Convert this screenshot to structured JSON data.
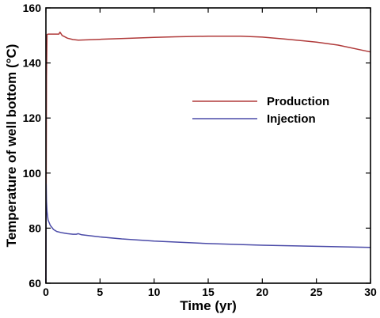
{
  "chart_data": {
    "type": "line",
    "xlabel": "Time (yr)",
    "ylabel": "Temperature of well bottom (°C)",
    "xlim": [
      0,
      30
    ],
    "ylim": [
      60,
      160
    ],
    "xticks": [
      "0",
      "5",
      "10",
      "15",
      "20",
      "25",
      "30"
    ],
    "yticks": [
      "60",
      "80",
      "100",
      "120",
      "140",
      "160"
    ],
    "grid": false,
    "legend_position": "center-right",
    "series": [
      {
        "name": "Production",
        "color": "#b03a3a",
        "x": [
          0,
          0.05,
          0.1,
          0.2,
          0.5,
          1.0,
          1.2,
          1.3,
          1.5,
          2.0,
          2.5,
          3.0,
          5,
          8,
          10,
          12,
          15,
          18,
          20,
          22,
          25,
          27,
          30
        ],
        "y": [
          60,
          135,
          150.3,
          150.5,
          150.5,
          150.5,
          150.5,
          151.2,
          150.0,
          149.0,
          148.5,
          148.3,
          148.6,
          149.0,
          149.3,
          149.5,
          149.7,
          149.7,
          149.4,
          148.7,
          147.6,
          146.5,
          144.0
        ]
      },
      {
        "name": "Injection",
        "color": "#4b4ba8",
        "x": [
          0,
          0.02,
          0.05,
          0.1,
          0.2,
          0.4,
          0.7,
          1.0,
          1.5,
          2.0,
          2.5,
          2.8,
          3.0,
          3.3,
          5,
          7,
          10,
          15,
          20,
          25,
          30
        ],
        "y": [
          60,
          96,
          90,
          86,
          83,
          81,
          79.5,
          78.8,
          78.3,
          78.0,
          77.8,
          77.8,
          78.0,
          77.6,
          76.8,
          76.1,
          75.3,
          74.4,
          73.8,
          73.4,
          73.0
        ]
      }
    ]
  }
}
